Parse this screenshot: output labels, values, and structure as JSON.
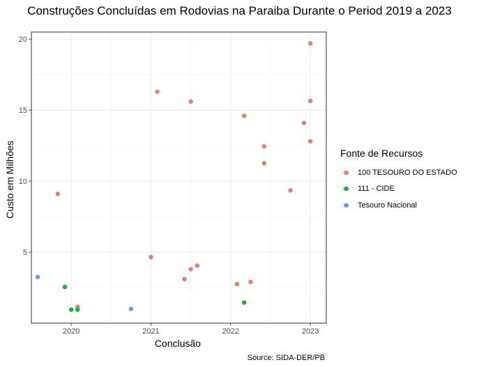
{
  "chart_data": {
    "type": "scatter",
    "title": "Construções Concluídas em Rodovias na Paraiba Durante o Period 2019 a 2023",
    "xlabel": "Conclusão",
    "ylabel": "Custo em Milhões",
    "caption": "Source: SIDA-DER/PB",
    "xlim": [
      2019.5,
      2023.2
    ],
    "ylim": [
      0,
      20.5
    ],
    "x_ticks": [
      2020,
      2021,
      2022,
      2023
    ],
    "x_tick_labels": [
      "2020",
      "2021",
      "2022",
      "2023"
    ],
    "y_ticks": [
      5,
      10,
      15,
      20
    ],
    "y_tick_labels": [
      "5",
      "10",
      "15",
      "20"
    ],
    "grid": true,
    "legend": {
      "title": "Fonte de Recursos",
      "position": "right"
    },
    "series": [
      {
        "name": "100 TESOURO DO ESTADO",
        "color": "#F8766D",
        "points": [
          [
            2019.83,
            9.1
          ],
          [
            2020.08,
            1.15
          ],
          [
            2021.0,
            4.65
          ],
          [
            2021.08,
            16.3
          ],
          [
            2021.42,
            3.1
          ],
          [
            2021.5,
            15.6
          ],
          [
            2021.5,
            3.8
          ],
          [
            2021.58,
            4.05
          ],
          [
            2022.08,
            2.75
          ],
          [
            2022.17,
            14.6
          ],
          [
            2022.25,
            2.9
          ],
          [
            2022.42,
            12.45
          ],
          [
            2022.42,
            11.25
          ],
          [
            2022.75,
            9.35
          ],
          [
            2022.92,
            14.1
          ],
          [
            2023.0,
            19.7
          ],
          [
            2023.0,
            15.65
          ],
          [
            2023.0,
            12.8
          ]
        ]
      },
      {
        "name": "111 - CIDE",
        "color": "#00BA38",
        "points": [
          [
            2019.92,
            2.55
          ],
          [
            2020.0,
            0.95
          ],
          [
            2020.08,
            0.95
          ],
          [
            2022.17,
            1.45
          ]
        ]
      },
      {
        "name": "Tesouro Nacional",
        "color": "#619CFF",
        "points": [
          [
            2019.58,
            3.25
          ],
          [
            2020.75,
            1.0
          ]
        ]
      }
    ]
  }
}
